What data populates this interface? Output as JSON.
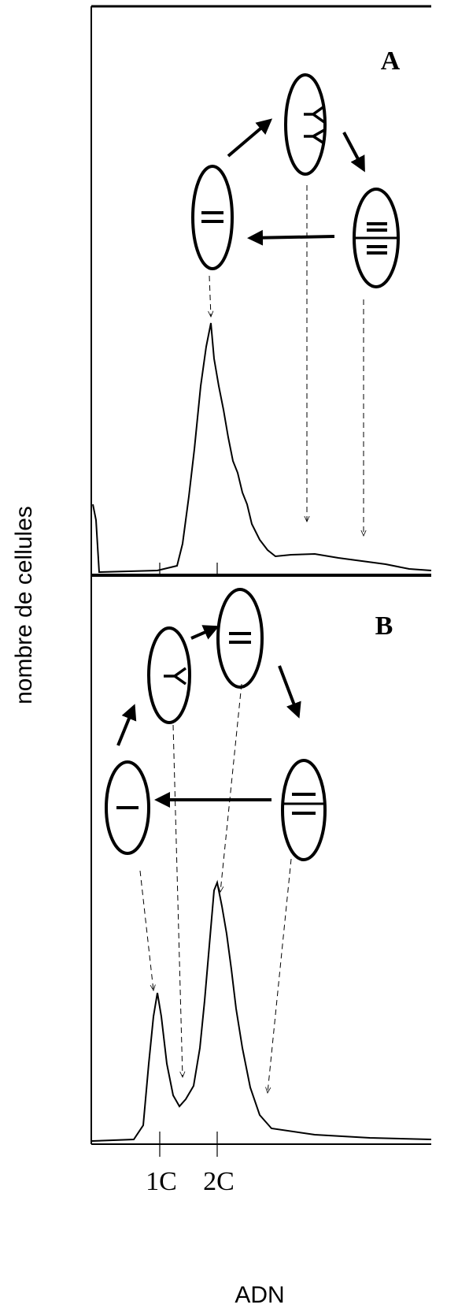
{
  "panels": [
    {
      "label": "A"
    },
    {
      "label": "B"
    }
  ],
  "y_axis_label": "nombre de cellules",
  "x_axis_label": "ADN",
  "x_ticks": [
    "1C",
    "2C"
  ]
}
